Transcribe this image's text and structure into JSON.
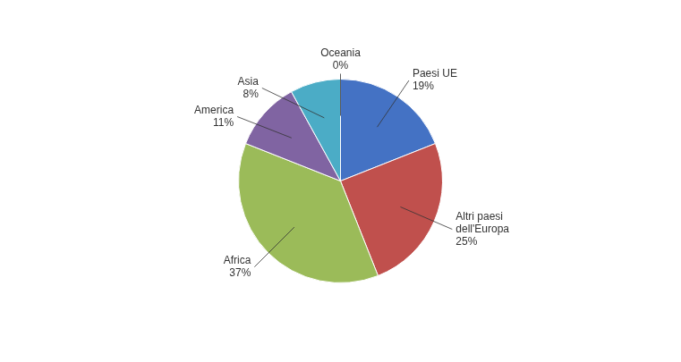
{
  "chart_data": {
    "type": "pie",
    "categories": [
      "Paesi UE",
      "Altri paesi\ndell'Europa",
      "Africa",
      "America",
      "Asia",
      "Oceania"
    ],
    "values": [
      19,
      25,
      37,
      11,
      8,
      0
    ],
    "value_labels": [
      "19%",
      "25%",
      "37%",
      "11%",
      "8%",
      "0%"
    ],
    "colors": [
      "#4472C4",
      "#C0504D",
      "#9BBB59",
      "#8064A2",
      "#4BACC6",
      "#92CDDC"
    ],
    "data_labels": true
  }
}
